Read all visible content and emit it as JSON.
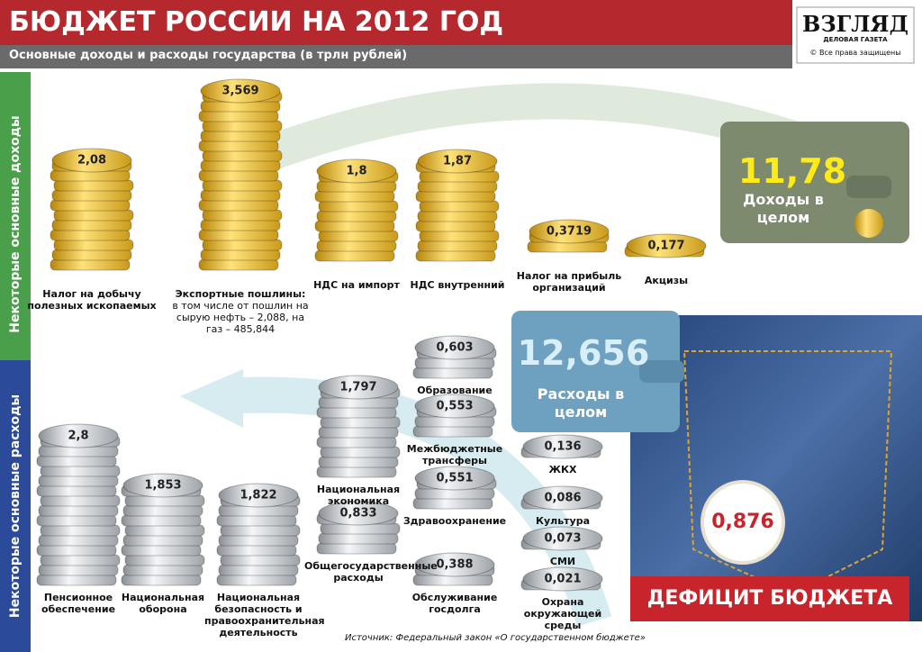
{
  "header": {
    "title": "БЮДЖЕТ РОССИИ НА 2012 ГОД",
    "subtitle": "Основные доходы и расходы государства (в трлн рублей)"
  },
  "logo": {
    "name": "ВЗГЛЯД",
    "tagline": "ДЕЛОВАЯ ГАЗЕТА",
    "rights": "© Все права защищены"
  },
  "side_labels": {
    "income": "Некоторые основные доходы",
    "expenses": "Некоторые основные расходы"
  },
  "income": [
    {
      "value": "2,08",
      "label": "Налог на добычу полезных ископаемых"
    },
    {
      "value": "3,569",
      "label": "Экспортные пошлины:",
      "note": "в том числе от пошлин на сырую нефть – 2,088, на газ – 485,844"
    },
    {
      "value": "1,8",
      "label": "НДС на импорт"
    },
    {
      "value": "1,87",
      "label": "НДС внутренний"
    },
    {
      "value": "0,3719",
      "label": "Налог на прибыль организаций"
    },
    {
      "value": "0,177",
      "label": "Акцизы"
    }
  ],
  "income_total": {
    "value": "11,78",
    "label": "Доходы в целом"
  },
  "expense_total": {
    "value": "12,656",
    "label": "Расходы в целом"
  },
  "expenses": [
    {
      "value": "2,8",
      "label": "Пенсионное обеспечение"
    },
    {
      "value": "1,853",
      "label": "Национальная оборона"
    },
    {
      "value": "1,822",
      "label": "Национальная безопасность и правоохранительная деятельность"
    },
    {
      "value": "1,797",
      "label": "Национальная экономика"
    },
    {
      "value": "0,833",
      "label": "Общегосударственные расходы"
    },
    {
      "value": "0,603",
      "label": "Образование"
    },
    {
      "value": "0,553",
      "label": "Межбюджетные трансферы"
    },
    {
      "value": "0,551",
      "label": "Здравоохранение"
    },
    {
      "value": "0,388",
      "label": "Обслуживание госдолга"
    },
    {
      "value": "0,136",
      "label": "ЖКХ"
    },
    {
      "value": "0,086",
      "label": "Культура"
    },
    {
      "value": "0,073",
      "label": "СМИ"
    },
    {
      "value": "0,021",
      "label": "Охрана окружающей среды"
    }
  ],
  "deficit": {
    "value": "0,876",
    "label": "ДЕФИЦИТ БЮДЖЕТА"
  },
  "source": "Источник: Федеральный закон «О государственном бюджете»"
}
